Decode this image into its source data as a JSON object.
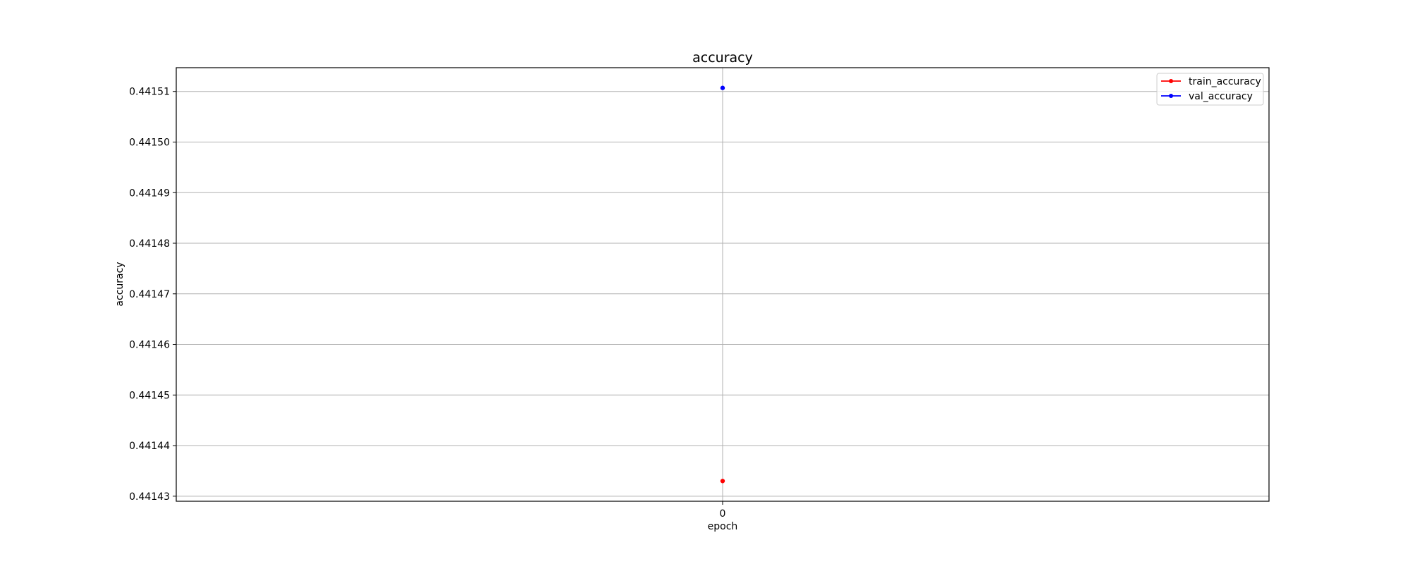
{
  "chart_data": {
    "type": "line",
    "title": "accuracy",
    "xlabel": "epoch",
    "ylabel": "accuracy",
    "x": [
      0
    ],
    "x_ticks": [
      "0"
    ],
    "y_ticks": [
      "0.44143",
      "0.44144",
      "0.44145",
      "0.44146",
      "0.44147",
      "0.44148",
      "0.44149",
      "0.44150",
      "0.44151"
    ],
    "y_tick_values": [
      0.44143,
      0.44144,
      0.44145,
      0.44146,
      0.44147,
      0.44148,
      0.44149,
      0.4415,
      0.44151
    ],
    "ylim": [
      0.441429,
      0.4415147
    ],
    "xlim": [
      -0.055,
      0.055
    ],
    "grid": true,
    "legend_position": "top-right",
    "series": [
      {
        "name": "train_accuracy",
        "color": "#ff0000",
        "marker": "dot",
        "values": [
          0.441433
        ]
      },
      {
        "name": "val_accuracy",
        "color": "#0000ff",
        "marker": "dot",
        "values": [
          0.4415107
        ]
      }
    ]
  }
}
